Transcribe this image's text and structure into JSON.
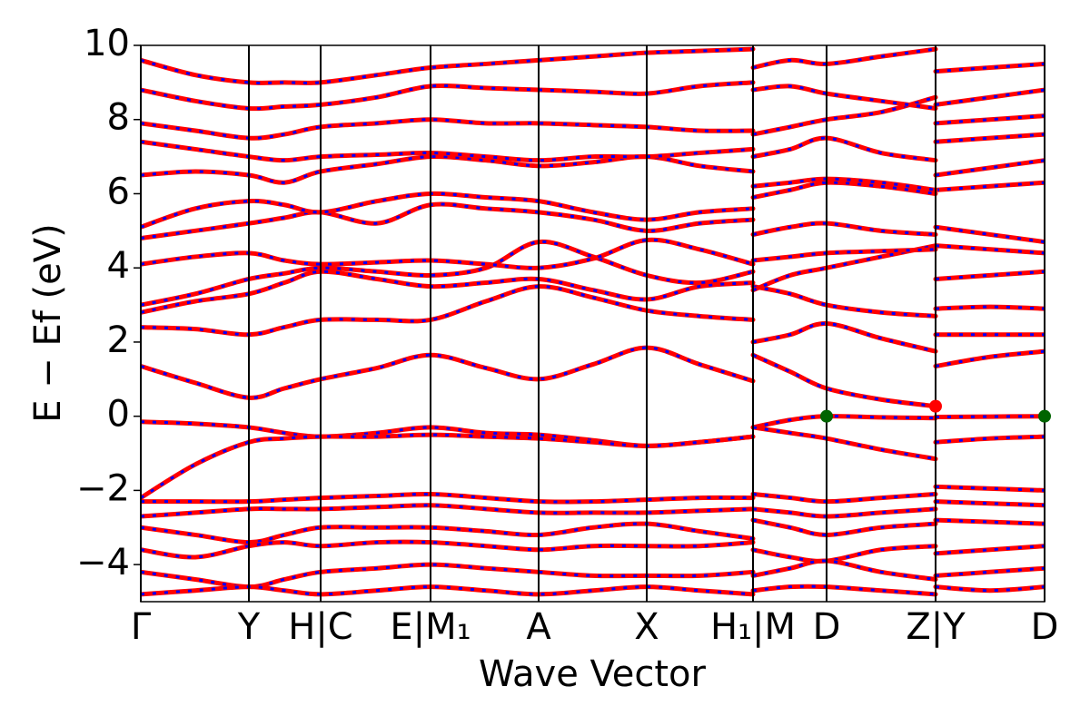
{
  "chart_data": {
    "type": "line",
    "xlabel": "Wave Vector",
    "ylabel": "E − Ef (eV)",
    "line_color": "#ff0000",
    "dash_color": "#0000ff",
    "xgrid": true,
    "xlim": [
      0,
      9.95
    ],
    "ylim": [
      -5,
      10
    ],
    "xticks": [
      {
        "value": 0,
        "label": "Γ"
      },
      {
        "value": 1.19,
        "label": "Y"
      },
      {
        "value": 1.98,
        "label": "H|C"
      },
      {
        "value": 3.19,
        "label": "E|M₁"
      },
      {
        "value": 4.38,
        "label": "A"
      },
      {
        "value": 5.57,
        "label": "X"
      },
      {
        "value": 6.74,
        "label": "H₁|M"
      },
      {
        "value": 7.55,
        "label": "D"
      },
      {
        "value": 8.75,
        "label": "Z|Y"
      },
      {
        "value": 9.95,
        "label": "D"
      }
    ],
    "yticks": [
      {
        "value": -4,
        "label": "−4"
      },
      {
        "value": -2,
        "label": "−2"
      },
      0,
      2,
      4,
      6,
      8,
      10
    ],
    "x": [
      0,
      0.6,
      1.19,
      1.58,
      1.98,
      2.6,
      3.19,
      3.8,
      4.38,
      4.98,
      5.57,
      6.15,
      6.74,
      6.74,
      6.74,
      7.15,
      7.55,
      8.15,
      8.75,
      8.75,
      8.75,
      9.35,
      9.95
    ],
    "series": [
      {
        "values": [
          1.35,
          0.9,
          0.5,
          0.75,
          1.0,
          1.3,
          1.65,
          1.3,
          1.0,
          1.4,
          1.85,
          1.4,
          0.95,
          null,
          1.65,
          1.2,
          0.75,
          0.45,
          0.27,
          null,
          1.35,
          1.6,
          1.75
        ]
      },
      {
        "values": [
          -0.15,
          -0.2,
          -0.3,
          -0.45,
          -0.55,
          -0.45,
          -0.3,
          -0.45,
          -0.5,
          -0.65,
          -0.8,
          -0.7,
          -0.55,
          null,
          -0.3,
          -0.1,
          0,
          -0.03,
          -0.05,
          null,
          -0.02,
          -0.01,
          0
        ]
      },
      {
        "values": [
          -2.2,
          -1.3,
          -0.7,
          -0.6,
          -0.55,
          -0.55,
          -0.5,
          -0.55,
          -0.6,
          -0.7,
          -0.8,
          -0.7,
          -0.55,
          null,
          -0.3,
          -0.45,
          -0.6,
          -0.9,
          -1.15,
          null,
          -0.7,
          -0.6,
          -0.55
        ]
      },
      {
        "values": [
          2.4,
          2.35,
          2.2,
          2.4,
          2.6,
          2.6,
          2.6,
          3.1,
          3.5,
          3.2,
          2.85,
          2.7,
          2.6,
          null,
          2.0,
          2.2,
          2.5,
          2.1,
          1.75,
          null,
          2.2,
          2.2,
          2.2
        ]
      },
      {
        "values": [
          2.8,
          3.1,
          3.3,
          3.6,
          3.9,
          3.7,
          3.5,
          3.6,
          3.7,
          3.4,
          3.15,
          3.5,
          3.6,
          null,
          3.5,
          3.3,
          3.0,
          2.8,
          2.7,
          null,
          2.9,
          2.95,
          2.9
        ]
      },
      {
        "values": [
          3.0,
          3.3,
          3.7,
          3.85,
          4.0,
          3.9,
          3.8,
          4.0,
          4.7,
          4.3,
          3.8,
          3.6,
          3.9,
          null,
          3.4,
          3.8,
          4.0,
          4.3,
          4.6,
          null,
          3.7,
          3.8,
          3.9
        ]
      },
      {
        "values": [
          4.1,
          4.3,
          4.4,
          4.2,
          4.1,
          4.15,
          4.2,
          4.1,
          4.0,
          4.25,
          4.75,
          4.5,
          4.1,
          null,
          4.2,
          4.3,
          4.4,
          4.45,
          4.5,
          null,
          4.6,
          4.5,
          4.4
        ]
      },
      {
        "values": [
          4.8,
          5.0,
          5.2,
          5.35,
          5.5,
          5.2,
          5.7,
          5.6,
          5.5,
          5.3,
          5.0,
          5.2,
          5.3,
          null,
          4.9,
          5.1,
          5.2,
          5.0,
          4.9,
          null,
          5.1,
          4.9,
          4.7
        ]
      },
      {
        "values": [
          5.1,
          5.6,
          5.8,
          5.7,
          5.5,
          5.8,
          6.0,
          5.9,
          5.8,
          5.5,
          5.3,
          5.5,
          5.6,
          null,
          5.9,
          6.1,
          6.3,
          6.2,
          6.0,
          null,
          6.1,
          6.2,
          6.3
        ]
      },
      {
        "values": [
          6.5,
          6.6,
          6.5,
          6.3,
          6.6,
          6.8,
          7.0,
          6.9,
          6.75,
          6.85,
          7.0,
          6.75,
          6.6,
          null,
          6.2,
          6.3,
          6.4,
          6.3,
          6.1,
          null,
          6.5,
          6.7,
          6.9
        ]
      },
      {
        "values": [
          7.4,
          7.2,
          7.0,
          6.9,
          7.0,
          7.05,
          7.1,
          7.0,
          6.9,
          7.0,
          7.0,
          7.1,
          7.2,
          null,
          7.0,
          7.2,
          7.5,
          7.1,
          6.9,
          null,
          7.4,
          7.5,
          7.6
        ]
      },
      {
        "values": [
          7.9,
          7.7,
          7.5,
          7.6,
          7.8,
          7.9,
          8.0,
          7.9,
          7.9,
          7.85,
          7.8,
          7.7,
          7.7,
          null,
          7.6,
          7.8,
          8.0,
          8.2,
          8.6,
          null,
          7.9,
          8.0,
          8.1
        ]
      },
      {
        "values": [
          8.8,
          8.5,
          8.3,
          8.35,
          8.4,
          8.6,
          8.9,
          8.85,
          8.8,
          8.75,
          8.7,
          8.9,
          9.0,
          null,
          8.8,
          8.9,
          8.7,
          8.5,
          8.3,
          null,
          8.4,
          8.6,
          8.8
        ]
      },
      {
        "values": [
          9.6,
          9.2,
          9.0,
          9.0,
          9.0,
          9.2,
          9.4,
          9.5,
          9.6,
          9.7,
          9.8,
          9.85,
          9.9,
          null,
          9.4,
          9.6,
          9.5,
          9.7,
          9.9,
          null,
          9.3,
          9.4,
          9.5
        ]
      },
      {
        "values": [
          -2.3,
          -2.3,
          -2.3,
          -2.25,
          -2.2,
          -2.15,
          -2.1,
          -2.2,
          -2.3,
          -2.3,
          -2.25,
          -2.2,
          -2.2,
          null,
          -2.1,
          -2.2,
          -2.3,
          -2.2,
          -2.1,
          null,
          -1.9,
          -1.95,
          -2.0
        ]
      },
      {
        "values": [
          -2.7,
          -2.6,
          -2.5,
          -2.5,
          -2.5,
          -2.45,
          -2.4,
          -2.5,
          -2.6,
          -2.6,
          -2.6,
          -2.55,
          -2.5,
          null,
          -2.5,
          -2.6,
          -2.7,
          -2.6,
          -2.5,
          null,
          -2.3,
          -2.35,
          -2.4
        ]
      },
      {
        "values": [
          -3.0,
          -3.2,
          -3.4,
          -3.2,
          -3.0,
          -3.0,
          -3.0,
          -3.1,
          -3.2,
          -3.0,
          -2.9,
          -3.1,
          -3.3,
          null,
          -2.8,
          -3.0,
          -3.2,
          -3.0,
          -2.9,
          null,
          -2.8,
          -2.85,
          -2.9
        ]
      },
      {
        "values": [
          -3.6,
          -3.8,
          -3.5,
          -3.4,
          -3.5,
          -3.4,
          -3.4,
          -3.5,
          -3.6,
          -3.5,
          -3.5,
          -3.5,
          -3.4,
          null,
          -3.6,
          -3.8,
          -3.9,
          -3.6,
          -3.5,
          null,
          -3.7,
          -3.6,
          -3.5
        ]
      },
      {
        "values": [
          -4.2,
          -4.4,
          -4.6,
          -4.4,
          -4.2,
          -4.1,
          -4.0,
          -4.1,
          -4.2,
          -4.3,
          -4.3,
          -4.3,
          -4.2,
          null,
          -4.3,
          -4.1,
          -3.9,
          -4.2,
          -4.4,
          null,
          -4.3,
          -4.2,
          -4.1
        ]
      },
      {
        "values": [
          -4.8,
          -4.7,
          -4.6,
          -4.7,
          -4.8,
          -4.7,
          -4.6,
          -4.7,
          -4.8,
          -4.7,
          -4.6,
          -4.7,
          -4.8,
          null,
          -4.7,
          -4.6,
          -4.6,
          -4.7,
          -4.8,
          null,
          -4.6,
          -4.7,
          -4.6
        ]
      }
    ],
    "points": [
      {
        "x": 7.55,
        "y": 0,
        "color": "#006400"
      },
      {
        "x": 8.75,
        "y": 0.27,
        "color": "#ff0000"
      },
      {
        "x": 9.95,
        "y": 0,
        "color": "#006400"
      }
    ]
  }
}
